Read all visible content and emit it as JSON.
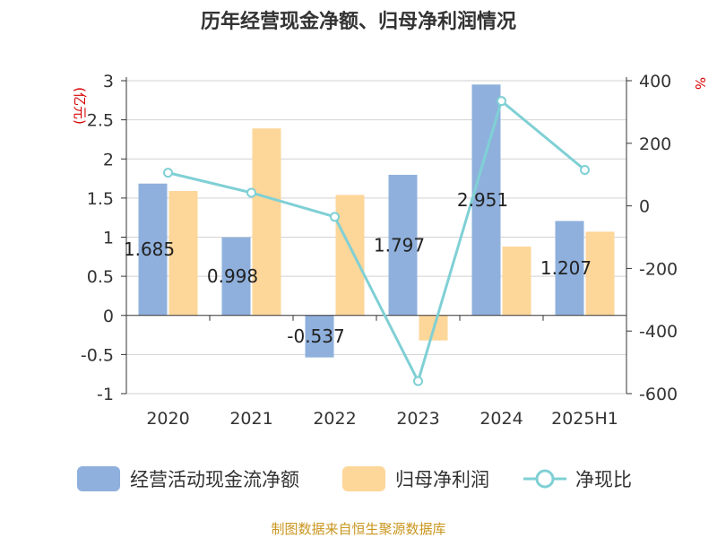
{
  "title": "历年经营现金净额、归母净利润情况",
  "left_unit": "(亿元)",
  "right_unit": "%",
  "source": "制图数据来自恒生聚源数据库",
  "colors": {
    "cash": "#8fb0dc",
    "profit": "#fdd699",
    "ratio": "#7fd0d5"
  },
  "chart_data": {
    "type": "bar",
    "categories": [
      "2020",
      "2021",
      "2022",
      "2023",
      "2024",
      "2025H1"
    ],
    "left_axis": {
      "ticks": [
        "3",
        "2.5",
        "2",
        "1.5",
        "1",
        "0.5",
        "0",
        "-0.5",
        "-1"
      ],
      "range": [
        -1,
        3
      ]
    },
    "right_axis": {
      "ticks": [
        "400",
        "200",
        "0",
        "-200",
        "-400",
        "-600"
      ],
      "range": [
        -600,
        400
      ]
    },
    "series": [
      {
        "name": "经营活动现金流净额",
        "type": "bar",
        "axis": "left",
        "values": [
          1.685,
          0.998,
          -0.537,
          1.797,
          2.951,
          1.207
        ],
        "labels": [
          "1.685",
          "0.998",
          "-0.537",
          "1.797",
          "2.951",
          "1.207"
        ]
      },
      {
        "name": "归母净利润",
        "type": "bar",
        "axis": "left",
        "values": [
          1.59,
          2.39,
          1.54,
          -0.32,
          0.88,
          1.07
        ]
      },
      {
        "name": "净现比",
        "type": "line",
        "axis": "right",
        "values": [
          106,
          42,
          -35,
          -560,
          335,
          115
        ]
      }
    ],
    "grid": true,
    "legend": "bottom"
  }
}
